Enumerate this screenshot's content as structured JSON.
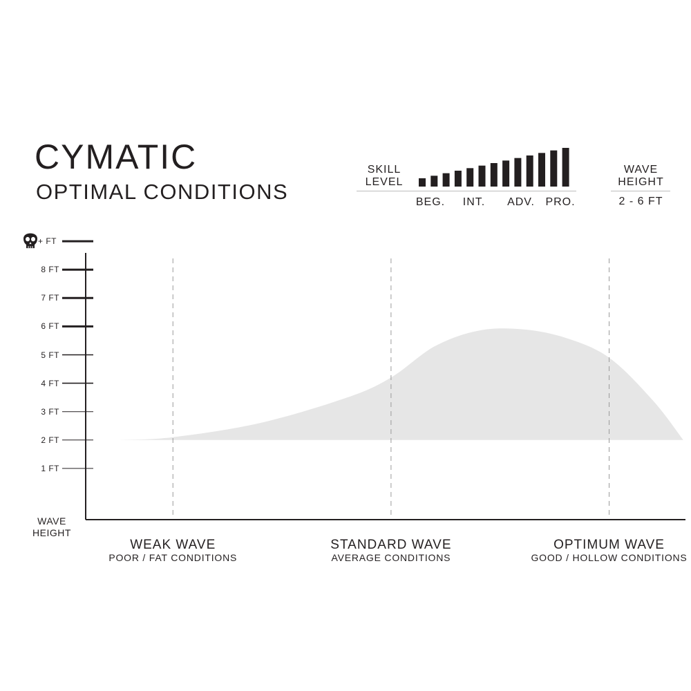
{
  "header": {
    "title": "CYMATIC",
    "subtitle": "OPTIMAL CONDITIONS"
  },
  "skill": {
    "label_line1": "SKILL",
    "label_line2": "LEVEL",
    "levels": [
      "BEG.",
      "INT.",
      "ADV.",
      "PRO."
    ],
    "bars": 13
  },
  "wave_height": {
    "label_line1": "WAVE",
    "label_line2": "HEIGHT",
    "range": "2 - 6 FT"
  },
  "chart_data": {
    "type": "area",
    "ylabel_line1": "WAVE",
    "ylabel_line2": "HEIGHT",
    "yticks": [
      {
        "value": 1,
        "label": "1 FT"
      },
      {
        "value": 2,
        "label": "2 FT"
      },
      {
        "value": 3,
        "label": "3 FT"
      },
      {
        "value": 4,
        "label": "4 FT"
      },
      {
        "value": 5,
        "label": "5 FT"
      },
      {
        "value": 6,
        "label": "6 FT"
      },
      {
        "value": 7,
        "label": "7 FT"
      },
      {
        "value": 8,
        "label": "8 FT"
      },
      {
        "value": 9,
        "label": "+ FT",
        "icon": "skull-icon"
      }
    ],
    "ylim": [
      0,
      9
    ],
    "xlim": [
      -0.4,
      2.35
    ],
    "categories": [
      {
        "x": 0,
        "title": "WEAK WAVE",
        "subtitle": "POOR / FAT CONDITIONS"
      },
      {
        "x": 1,
        "title": "STANDARD WAVE",
        "subtitle": "AVERAGE CONDITIONS"
      },
      {
        "x": 2,
        "title": "OPTIMUM WAVE",
        "subtitle": "GOOD / HOLLOW CONDITIONS"
      }
    ],
    "baseline": 2,
    "curve": [
      {
        "x": -0.25,
        "y": 2.0
      },
      {
        "x": 0.0,
        "y": 2.1
      },
      {
        "x": 0.4,
        "y": 2.6
      },
      {
        "x": 0.8,
        "y": 3.5
      },
      {
        "x": 1.0,
        "y": 4.2
      },
      {
        "x": 1.2,
        "y": 5.3
      },
      {
        "x": 1.4,
        "y": 5.85
      },
      {
        "x": 1.6,
        "y": 5.9
      },
      {
        "x": 1.8,
        "y": 5.6
      },
      {
        "x": 2.0,
        "y": 4.9
      },
      {
        "x": 2.2,
        "y": 3.4
      },
      {
        "x": 2.34,
        "y": 2.0
      }
    ],
    "colors": {
      "fill": "#e6e6e6",
      "axis": "#231f20",
      "grid": "#9a9a9a"
    }
  }
}
